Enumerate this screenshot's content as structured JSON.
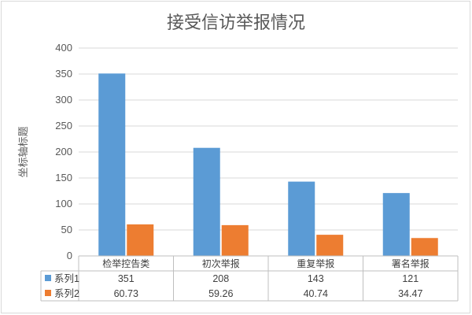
{
  "chart_data": {
    "type": "bar",
    "title": "接受信访举报情况",
    "xlabel": "",
    "ylabel": "坐标轴标题",
    "categories": [
      "检举控告类",
      "初次举报",
      "重复举报",
      "署名举报"
    ],
    "series": [
      {
        "name": "系列1",
        "color": "#5b9bd5",
        "values": [
          351,
          208,
          143,
          121
        ]
      },
      {
        "name": "系列2",
        "color": "#ed7d31",
        "values": [
          60.73,
          59.26,
          40.74,
          34.47
        ]
      }
    ],
    "ylim": [
      0,
      400
    ],
    "yticks": [
      0,
      50,
      100,
      150,
      200,
      250,
      300,
      350,
      400
    ],
    "grid": true,
    "legend": "data-table",
    "data_table": {
      "rows": [
        {
          "series": "系列1",
          "cells": [
            "351",
            "208",
            "143",
            "121"
          ]
        },
        {
          "series": "系列2",
          "cells": [
            "60.73",
            "59.26",
            "40.74",
            "34.47"
          ]
        }
      ]
    }
  }
}
